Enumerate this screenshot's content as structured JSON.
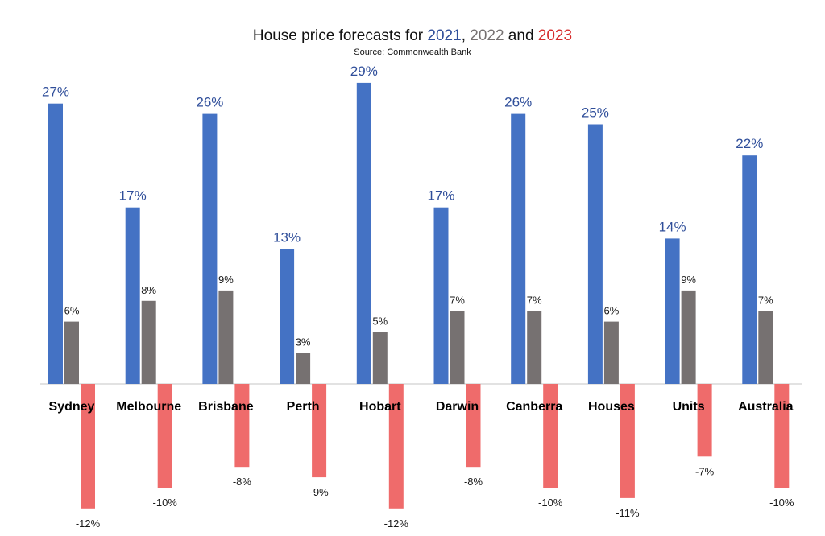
{
  "title": {
    "prefix": "House price forecasts for ",
    "y2021": "2021",
    "sep": ", ",
    "y2022": "2022",
    "and": " and ",
    "y2023": "2023"
  },
  "subtitle": "Source: Commonwealth Bank",
  "colors": {
    "s2021": "#4472C4",
    "s2022": "#767171",
    "s2023": "#EF6B6B",
    "label2021": "#2F4E9A",
    "label2023": "#D62B2B",
    "text": "#1a1a1a",
    "axis": "#d9d9d9"
  },
  "chart_data": {
    "type": "bar",
    "title": "House price forecasts for 2021, 2022 and 2023",
    "subtitle": "Source: Commonwealth Bank",
    "categories": [
      "Sydney",
      "Melbourne",
      "Brisbane",
      "Perth",
      "Hobart",
      "Darwin",
      "Canberra",
      "Houses",
      "Units",
      "Australia"
    ],
    "series": [
      {
        "name": "2021",
        "values": [
          27,
          17,
          26,
          13,
          29,
          17,
          26,
          25,
          14,
          22
        ]
      },
      {
        "name": "2022",
        "values": [
          6,
          8,
          9,
          3,
          5,
          7,
          7,
          6,
          9,
          7
        ]
      },
      {
        "name": "2023",
        "values": [
          -12,
          -10,
          -8,
          -9,
          -12,
          -8,
          -10,
          -11,
          -7,
          -10
        ]
      }
    ],
    "value_labels": [
      [
        "27%",
        "17%",
        "26%",
        "13%",
        "29%",
        "17%",
        "26%",
        "25%",
        "14%",
        "22%"
      ],
      [
        "6%",
        "8%",
        "9%",
        "3%",
        "5%",
        "7%",
        "7%",
        "6%",
        "9%",
        "7%"
      ],
      [
        "-12%",
        "-10%",
        "-8%",
        "-9%",
        "-12%",
        "-8%",
        "-10%",
        "-11%",
        "-7%",
        "-10%"
      ]
    ],
    "ylim": [
      -12,
      29
    ],
    "unit": "%",
    "grid": false,
    "legend": "none"
  }
}
